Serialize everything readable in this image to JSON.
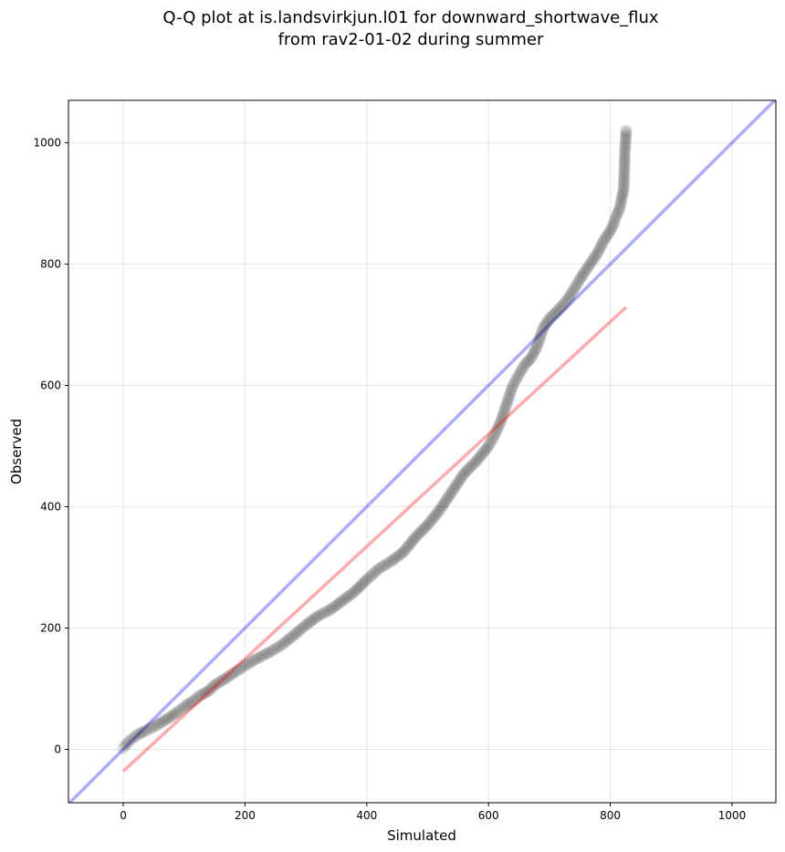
{
  "chart_data": {
    "type": "scatter",
    "title": [
      "Q-Q plot at is.landsvirkjun.l01 for downward_shortwave_flux",
      "from rav2-01-02 during summer"
    ],
    "xlabel": "Simulated",
    "ylabel": "Observed",
    "xlim": [
      -90,
      1072
    ],
    "ylim": [
      -88,
      1070
    ],
    "xticks": [
      0,
      200,
      400,
      600,
      800,
      1000
    ],
    "yticks": [
      0,
      200,
      400,
      600,
      800,
      1000
    ],
    "grid": true,
    "reference_line": {
      "kind": "1:1",
      "color": "#0000ff",
      "alpha": 0.33
    },
    "fit_line": {
      "x": [
        0,
        826
      ],
      "y": [
        -36,
        729
      ],
      "color": "#ff0000",
      "alpha": 0.33
    },
    "quantiles": {
      "x": [
        0,
        3,
        8,
        15,
        25,
        35,
        50,
        60,
        75,
        90,
        100,
        115,
        125,
        140,
        150,
        165,
        180,
        200,
        220,
        240,
        260,
        280,
        300,
        320,
        340,
        360,
        380,
        400,
        420,
        440,
        460,
        480,
        500,
        520,
        540,
        560,
        580,
        600,
        610,
        620,
        630,
        640,
        650,
        660,
        670,
        680,
        690,
        700,
        710,
        720,
        730,
        740,
        750,
        760,
        770,
        780,
        790,
        800,
        805,
        810,
        815,
        818,
        820,
        822,
        824,
        826,
        826
      ],
      "y": [
        2,
        6,
        12,
        18,
        25,
        30,
        37,
        43,
        52,
        62,
        70,
        80,
        88,
        96,
        106,
        115,
        125,
        138,
        150,
        160,
        172,
        188,
        205,
        220,
        230,
        245,
        260,
        280,
        298,
        310,
        325,
        350,
        370,
        395,
        425,
        455,
        475,
        500,
        518,
        540,
        570,
        600,
        618,
        635,
        645,
        665,
        695,
        710,
        720,
        730,
        742,
        758,
        775,
        790,
        805,
        820,
        840,
        855,
        865,
        880,
        890,
        905,
        915,
        922,
        985,
        1018,
        1020
      ]
    }
  }
}
